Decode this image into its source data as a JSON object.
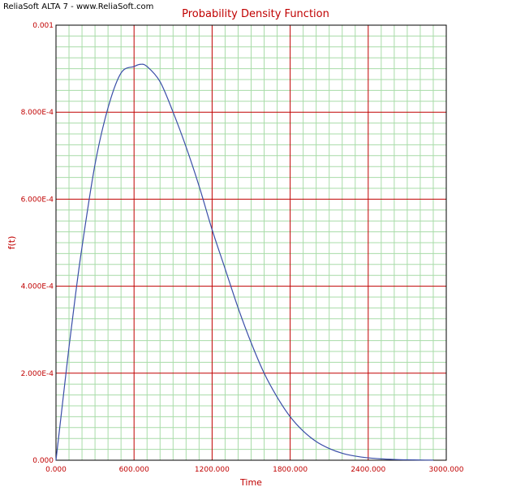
{
  "watermark": "ReliaSoft ALTA 7 - www.ReliaSoft.com",
  "chart_data": {
    "type": "line",
    "title": "Probability Density Function",
    "xlabel": "Time",
    "ylabel": "f(t)",
    "xlim": [
      0,
      3000
    ],
    "ylim": [
      0,
      0.001
    ],
    "x_ticks": [
      0,
      600,
      1200,
      1800,
      2400,
      3000
    ],
    "x_tick_labels": [
      "0.000",
      "600.000",
      "1200.000",
      "1800.000",
      "2400.000",
      "3000.000"
    ],
    "y_ticks": [
      0,
      0.0002,
      0.0004,
      0.0006,
      0.0008,
      0.001
    ],
    "y_tick_labels": [
      "0.000",
      "2.000E-4",
      "4.000E-4",
      "6.000E-4",
      "8.000E-4",
      "0.001"
    ],
    "grid": true,
    "series": [
      {
        "color": "#3a4ea8",
        "x": [
          0,
          50,
          100,
          150,
          200,
          300,
          400,
          500,
          600,
          650,
          700,
          800,
          900,
          1000,
          1100,
          1200,
          1300,
          1400,
          1500,
          1600,
          1700,
          1800,
          1900,
          2000,
          2100,
          2200,
          2300,
          2400,
          2500,
          2600,
          2700,
          2800,
          2900
        ],
        "y": [
          0.0,
          0.00013,
          0.00026,
          0.00038,
          0.00049,
          0.00068,
          0.00081,
          0.00089,
          0.000905,
          0.00091,
          0.000905,
          0.00087,
          0.0008,
          0.00072,
          0.00063,
          0.00053,
          0.00044,
          0.00035,
          0.00027,
          0.0002,
          0.000145,
          0.0001,
          6.7e-05,
          4.3e-05,
          2.7e-05,
          1.6e-05,
          9.5e-06,
          5.5e-06,
          3.1e-06,
          1.7e-06,
          9e-07,
          5e-07,
          2e-07
        ]
      }
    ],
    "colors": {
      "major_grid": "#c00000",
      "minor_grid": "#a8dca8",
      "text": "#c00000",
      "axis": "#000000"
    }
  }
}
